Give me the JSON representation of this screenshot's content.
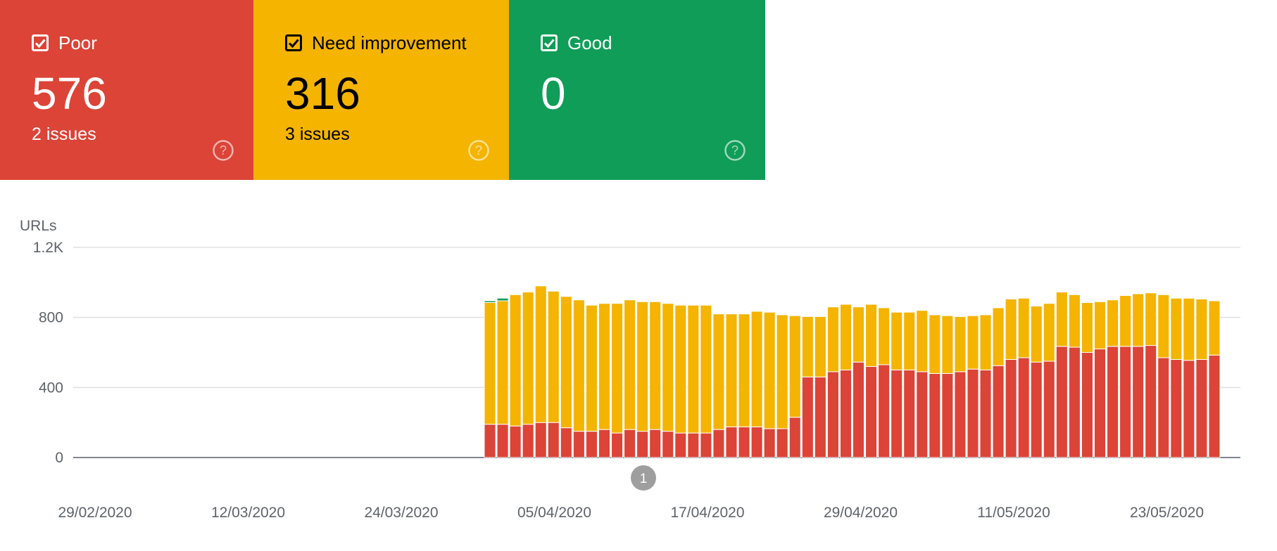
{
  "cards": [
    {
      "id": "poor",
      "label": "Poor",
      "count": "576",
      "issues": "2 issues",
      "color": "#db4437",
      "text_color": "#ffffff",
      "checked": true
    },
    {
      "id": "need",
      "label": "Need improvement",
      "count": "316",
      "issues": "3 issues",
      "color": "#f4b400",
      "text_color": "#000000",
      "checked": true
    },
    {
      "id": "good",
      "label": "Good",
      "count": "0",
      "issues": "",
      "color": "#0f9d58",
      "text_color": "#ffffff",
      "checked": true
    }
  ],
  "annotation_marker": "1",
  "chart_data": {
    "type": "bar",
    "stacked": true,
    "ylabel": "URLs",
    "ylim": [
      0,
      1200
    ],
    "yticks": [
      0,
      400,
      800,
      1200
    ],
    "ytick_labels": [
      "0",
      "400",
      "800",
      "1.2K"
    ],
    "xtick_labels": [
      "29/02/2020",
      "12/03/2020",
      "24/03/2020",
      "05/04/2020",
      "17/04/2020",
      "29/04/2020",
      "11/05/2020",
      "23/05/2020"
    ],
    "grid": true,
    "colors": {
      "poor": "#db4437",
      "need": "#f4b400",
      "good": "#0f9d58"
    },
    "categories": [
      "31/03",
      "01/04",
      "02/04",
      "03/04",
      "04/04",
      "05/04",
      "06/04",
      "07/04",
      "08/04",
      "09/04",
      "10/04",
      "11/04",
      "12/04",
      "13/04",
      "14/04",
      "15/04",
      "16/04",
      "17/04",
      "18/04",
      "19/04",
      "20/04",
      "21/04",
      "22/04",
      "23/04",
      "24/04",
      "25/04",
      "26/04",
      "27/04",
      "28/04",
      "29/04",
      "30/04",
      "01/05",
      "02/05",
      "03/05",
      "04/05",
      "05/05",
      "06/05",
      "07/05",
      "08/05",
      "09/05",
      "10/05",
      "11/05",
      "12/05",
      "13/05",
      "14/05",
      "15/05",
      "16/05",
      "17/05",
      "18/05",
      "19/05",
      "20/05",
      "21/05",
      "22/05",
      "23/05",
      "24/05",
      "25/05",
      "26/05",
      "27/05"
    ],
    "series": [
      {
        "id": "poor",
        "values": [
          190,
          190,
          180,
          190,
          200,
          200,
          170,
          150,
          150,
          160,
          140,
          160,
          150,
          160,
          150,
          140,
          140,
          140,
          160,
          175,
          175,
          175,
          165,
          165,
          230,
          460,
          460,
          490,
          500,
          545,
          520,
          530,
          500,
          500,
          490,
          480,
          480,
          490,
          505,
          500,
          525,
          560,
          570,
          545,
          550,
          635,
          630,
          600,
          620,
          635,
          635,
          635,
          640,
          570,
          560,
          555,
          560,
          585
        ]
      },
      {
        "id": "need",
        "values": [
          695,
          705,
          750,
          755,
          780,
          750,
          750,
          750,
          720,
          720,
          740,
          740,
          740,
          730,
          730,
          730,
          730,
          730,
          660,
          645,
          645,
          660,
          665,
          650,
          580,
          345,
          345,
          370,
          375,
          315,
          355,
          325,
          330,
          330,
          350,
          335,
          330,
          315,
          305,
          315,
          330,
          345,
          340,
          320,
          330,
          310,
          300,
          285,
          270,
          265,
          290,
          300,
          300,
          360,
          350,
          355,
          345,
          310
        ]
      },
      {
        "id": "good",
        "values": [
          10,
          15,
          0,
          0,
          0,
          0,
          0,
          0,
          0,
          0,
          0,
          0,
          0,
          0,
          0,
          0,
          0,
          0,
          0,
          0,
          0,
          0,
          0,
          0,
          0,
          0,
          0,
          0,
          0,
          0,
          0,
          0,
          0,
          0,
          0,
          0,
          0,
          0,
          0,
          0,
          0,
          0,
          0,
          0,
          0,
          0,
          0,
          0,
          0,
          0,
          0,
          0,
          0,
          0,
          0,
          0,
          0,
          0
        ]
      }
    ]
  }
}
